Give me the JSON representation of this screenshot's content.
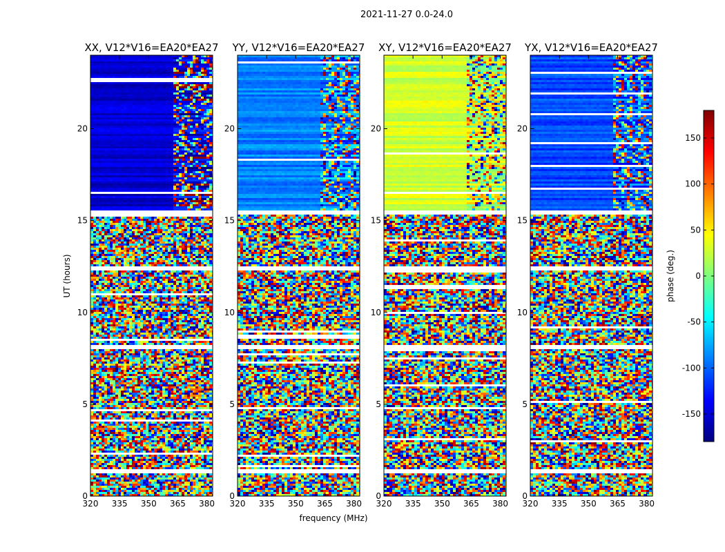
{
  "figure": {
    "suptitle": "2021-11-27 0.0-24.0"
  },
  "chart_data": {
    "type": "heatmap",
    "panels": [
      {
        "title": "XX, V12*V16=EA20*EA27",
        "base_phase": -150
      },
      {
        "title": "YY, V12*V16=EA20*EA27",
        "base_phase": -90
      },
      {
        "title": "XY, V12*V16=EA20*EA27",
        "base_phase": 30
      },
      {
        "title": "YX, V12*V16=EA20*EA27",
        "base_phase": -110
      }
    ],
    "xlabel": "frequency (MHz)",
    "ylabel": "UT (hours)",
    "xlim": [
      320,
      383
    ],
    "ylim": [
      0,
      24
    ],
    "x_ticks": [
      "320",
      "335",
      "350",
      "365",
      "380"
    ],
    "x_tick_values": [
      320,
      335,
      350,
      365,
      380
    ],
    "y_ticks": [
      "0",
      "5",
      "10",
      "15",
      "20"
    ],
    "y_tick_values": [
      0,
      5,
      10,
      15,
      20
    ],
    "flagged_ut_ranges": [
      [
        1.2,
        1.5
      ],
      [
        15.3,
        15.6
      ],
      [
        12.3,
        12.5
      ],
      [
        8.0,
        8.2
      ]
    ],
    "noisy_ut_range": [
      0,
      15.3
    ],
    "coherent_ut_range": [
      15.6,
      24
    ],
    "fringe_freq_start": 362,
    "colorbar": {
      "label": "phase (deg.)",
      "range": [
        -180,
        180
      ],
      "ticks": [
        "-150",
        "-100",
        "-50",
        "0",
        "50",
        "100",
        "150"
      ],
      "tick_values": [
        -150,
        -100,
        -50,
        0,
        50,
        100,
        150
      ],
      "colors": [
        "#00007f",
        "#0000ff",
        "#007fff",
        "#00ffff",
        "#7fff7f",
        "#ffff00",
        "#ff7f00",
        "#ff0000",
        "#7f0000"
      ]
    }
  }
}
